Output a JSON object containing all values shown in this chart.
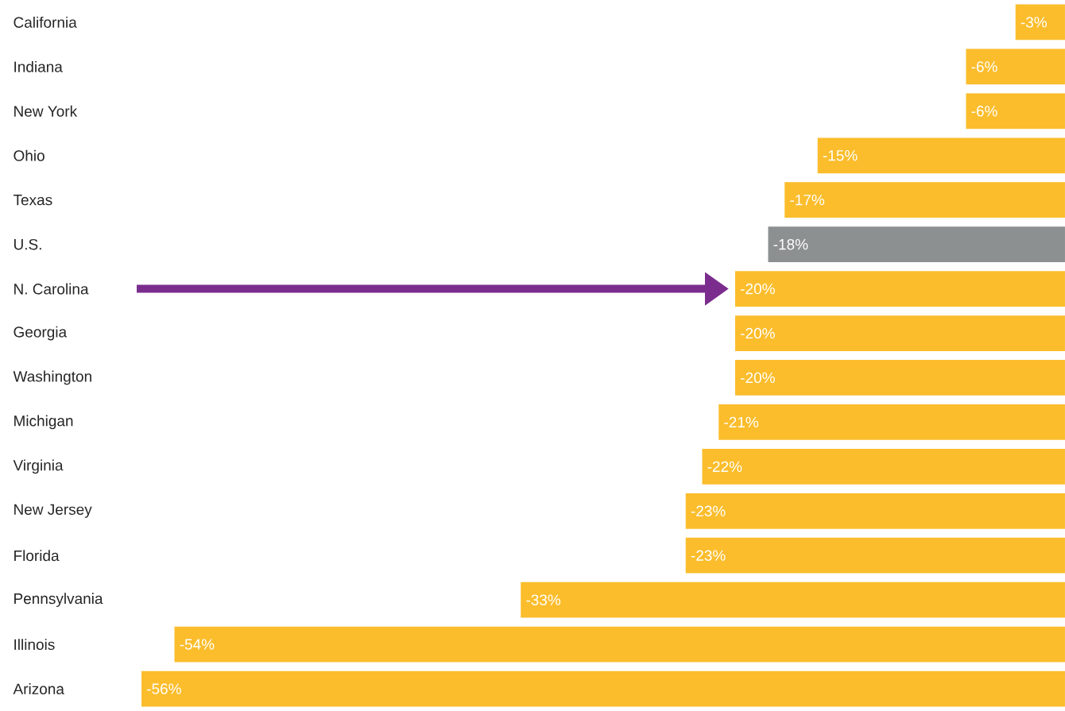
{
  "chart_data": {
    "type": "bar",
    "orientation": "horizontal",
    "categories": [
      "California",
      "Indiana",
      "New York",
      "Ohio",
      "Texas",
      "U.S.",
      "N. Carolina",
      "Georgia",
      "Washington",
      "Michigan",
      "Virginia",
      "New Jersey",
      "Florida",
      "Pennsylvania",
      "Illinois",
      "Arizona"
    ],
    "values": [
      -3,
      -6,
      -6,
      -15,
      -17,
      -18,
      -20,
      -20,
      -20,
      -21,
      -22,
      -23,
      -23,
      -33,
      -54,
      -56
    ],
    "colors": [
      "#fbbd2c",
      "#fbbd2c",
      "#fbbd2c",
      "#fbbd2c",
      "#fbbd2c",
      "#8c9091",
      "#fbbd2c",
      "#fbbd2c",
      "#fbbd2c",
      "#fbbd2c",
      "#fbbd2c",
      "#fbbd2c",
      "#fbbd2c",
      "#fbbd2c",
      "#fbbd2c",
      "#fbbd2c"
    ],
    "value_labels": [
      "-3%",
      "-6%",
      "-6%",
      "-15%",
      "-17%",
      "-18%",
      "-20%",
      "-20%",
      "-20%",
      "-21%",
      "-22%",
      "-23%",
      "-23%",
      "-33%",
      "-54%",
      "-56%"
    ],
    "grid": false
  }
}
